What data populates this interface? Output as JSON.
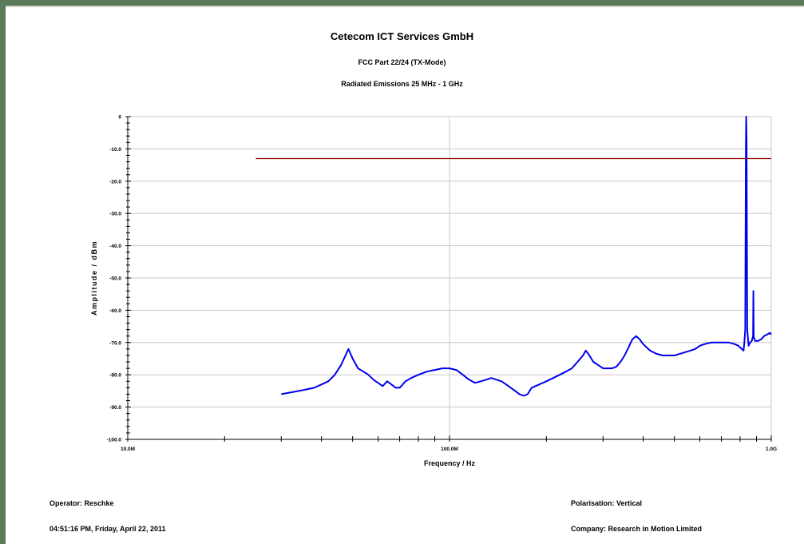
{
  "header": {
    "title": "Cetecom ICT Services GmbH",
    "subtitle": "FCC Part 22/24 (TX-Mode)",
    "subtitle2": "Radiated Emissions 25 MHz - 1 GHz"
  },
  "footer": {
    "operator": "Operator: Reschke",
    "timestamp": "04:51:16 PM, Friday, April 22, 2011",
    "polarisation": "Polarisation: Vertical",
    "company": "Company: Research in Motion Limited"
  },
  "chart_data": {
    "type": "line",
    "title": "Cetecom ICT Services GmbH",
    "xlabel": "Frequency / Hz",
    "ylabel": "Amplitude / dBm",
    "x_scale": "log",
    "xlim": [
      10000000,
      1000000000
    ],
    "ylim": [
      -100,
      0
    ],
    "grid": true,
    "x_tick_labels": [
      {
        "value": 10000000,
        "label": "10.0M"
      },
      {
        "value": 100000000,
        "label": "100.0M"
      },
      {
        "value": 1000000000,
        "label": "1.0G"
      }
    ],
    "y_tick_labels": [
      {
        "value": 0,
        "label": "0"
      },
      {
        "value": -10,
        "label": "-10.0"
      },
      {
        "value": -20,
        "label": "-20.0"
      },
      {
        "value": -30,
        "label": "-30.0"
      },
      {
        "value": -40,
        "label": "-40.0"
      },
      {
        "value": -50,
        "label": "-50.0"
      },
      {
        "value": -60,
        "label": "-60.0"
      },
      {
        "value": -70,
        "label": "-70.0"
      },
      {
        "value": -80,
        "label": "-80.0"
      },
      {
        "value": -90,
        "label": "-90.0"
      },
      {
        "value": -100,
        "label": "-100.0"
      }
    ],
    "series": [
      {
        "color": "#0000ee",
        "points": [
          [
            30000000,
            -86
          ],
          [
            32000000,
            -85.5
          ],
          [
            34000000,
            -85
          ],
          [
            36000000,
            -84.5
          ],
          [
            38000000,
            -84
          ],
          [
            40000000,
            -83
          ],
          [
            42000000,
            -82
          ],
          [
            44000000,
            -80
          ],
          [
            46000000,
            -77
          ],
          [
            47500000,
            -74
          ],
          [
            48500000,
            -72
          ],
          [
            50000000,
            -75
          ],
          [
            52000000,
            -78
          ],
          [
            54000000,
            -79
          ],
          [
            56000000,
            -80
          ],
          [
            58000000,
            -81.5
          ],
          [
            60000000,
            -82.5
          ],
          [
            62000000,
            -83.5
          ],
          [
            64000000,
            -82
          ],
          [
            66000000,
            -83
          ],
          [
            68000000,
            -84
          ],
          [
            70000000,
            -84
          ],
          [
            73000000,
            -82
          ],
          [
            76000000,
            -81
          ],
          [
            80000000,
            -80
          ],
          [
            85000000,
            -79
          ],
          [
            90000000,
            -78.5
          ],
          [
            95000000,
            -78
          ],
          [
            100000000,
            -78
          ],
          [
            105000000,
            -78.5
          ],
          [
            110000000,
            -80
          ],
          [
            115000000,
            -81.5
          ],
          [
            120000000,
            -82.5
          ],
          [
            125000000,
            -82
          ],
          [
            130000000,
            -81.5
          ],
          [
            135000000,
            -81
          ],
          [
            140000000,
            -81.5
          ],
          [
            145000000,
            -82
          ],
          [
            150000000,
            -83
          ],
          [
            155000000,
            -84
          ],
          [
            160000000,
            -85
          ],
          [
            165000000,
            -86
          ],
          [
            170000000,
            -86.5
          ],
          [
            175000000,
            -86
          ],
          [
            180000000,
            -84
          ],
          [
            190000000,
            -83
          ],
          [
            200000000,
            -82
          ],
          [
            210000000,
            -81
          ],
          [
            220000000,
            -80
          ],
          [
            230000000,
            -79
          ],
          [
            240000000,
            -78
          ],
          [
            250000000,
            -76
          ],
          [
            260000000,
            -74
          ],
          [
            265000000,
            -72.5
          ],
          [
            270000000,
            -73.5
          ],
          [
            280000000,
            -76
          ],
          [
            290000000,
            -77
          ],
          [
            300000000,
            -78
          ],
          [
            310000000,
            -78
          ],
          [
            320000000,
            -78
          ],
          [
            330000000,
            -77.5
          ],
          [
            340000000,
            -76
          ],
          [
            350000000,
            -74
          ],
          [
            360000000,
            -71.5
          ],
          [
            370000000,
            -69
          ],
          [
            380000000,
            -68
          ],
          [
            390000000,
            -69
          ],
          [
            400000000,
            -70.5
          ],
          [
            420000000,
            -72.5
          ],
          [
            440000000,
            -73.5
          ],
          [
            460000000,
            -74
          ],
          [
            480000000,
            -74
          ],
          [
            500000000,
            -74
          ],
          [
            520000000,
            -73.5
          ],
          [
            540000000,
            -73
          ],
          [
            560000000,
            -72.5
          ],
          [
            580000000,
            -72
          ],
          [
            600000000,
            -71
          ],
          [
            620000000,
            -70.5
          ],
          [
            650000000,
            -70
          ],
          [
            680000000,
            -70
          ],
          [
            710000000,
            -70
          ],
          [
            740000000,
            -70
          ],
          [
            770000000,
            -70.5
          ],
          [
            790000000,
            -71
          ],
          [
            810000000,
            -72
          ],
          [
            820000000,
            -72.5
          ],
          [
            825000000,
            -70
          ],
          [
            830000000,
            -66
          ],
          [
            834000000,
            -10
          ],
          [
            836000000,
            0
          ],
          [
            838000000,
            -8
          ],
          [
            842000000,
            -66
          ],
          [
            850000000,
            -71
          ],
          [
            860000000,
            -70
          ],
          [
            870000000,
            -69.5
          ],
          [
            878000000,
            -68
          ],
          [
            880000000,
            -54
          ],
          [
            882000000,
            -68
          ],
          [
            890000000,
            -69.5
          ],
          [
            910000000,
            -69.5
          ],
          [
            930000000,
            -69
          ],
          [
            950000000,
            -68
          ],
          [
            970000000,
            -67.5
          ],
          [
            990000000,
            -67
          ],
          [
            1000000000,
            -67.5
          ]
        ]
      },
      {
        "color": "#8b0000",
        "points": [
          [
            25000000,
            -13
          ],
          [
            1000000000,
            -13
          ]
        ]
      }
    ]
  }
}
